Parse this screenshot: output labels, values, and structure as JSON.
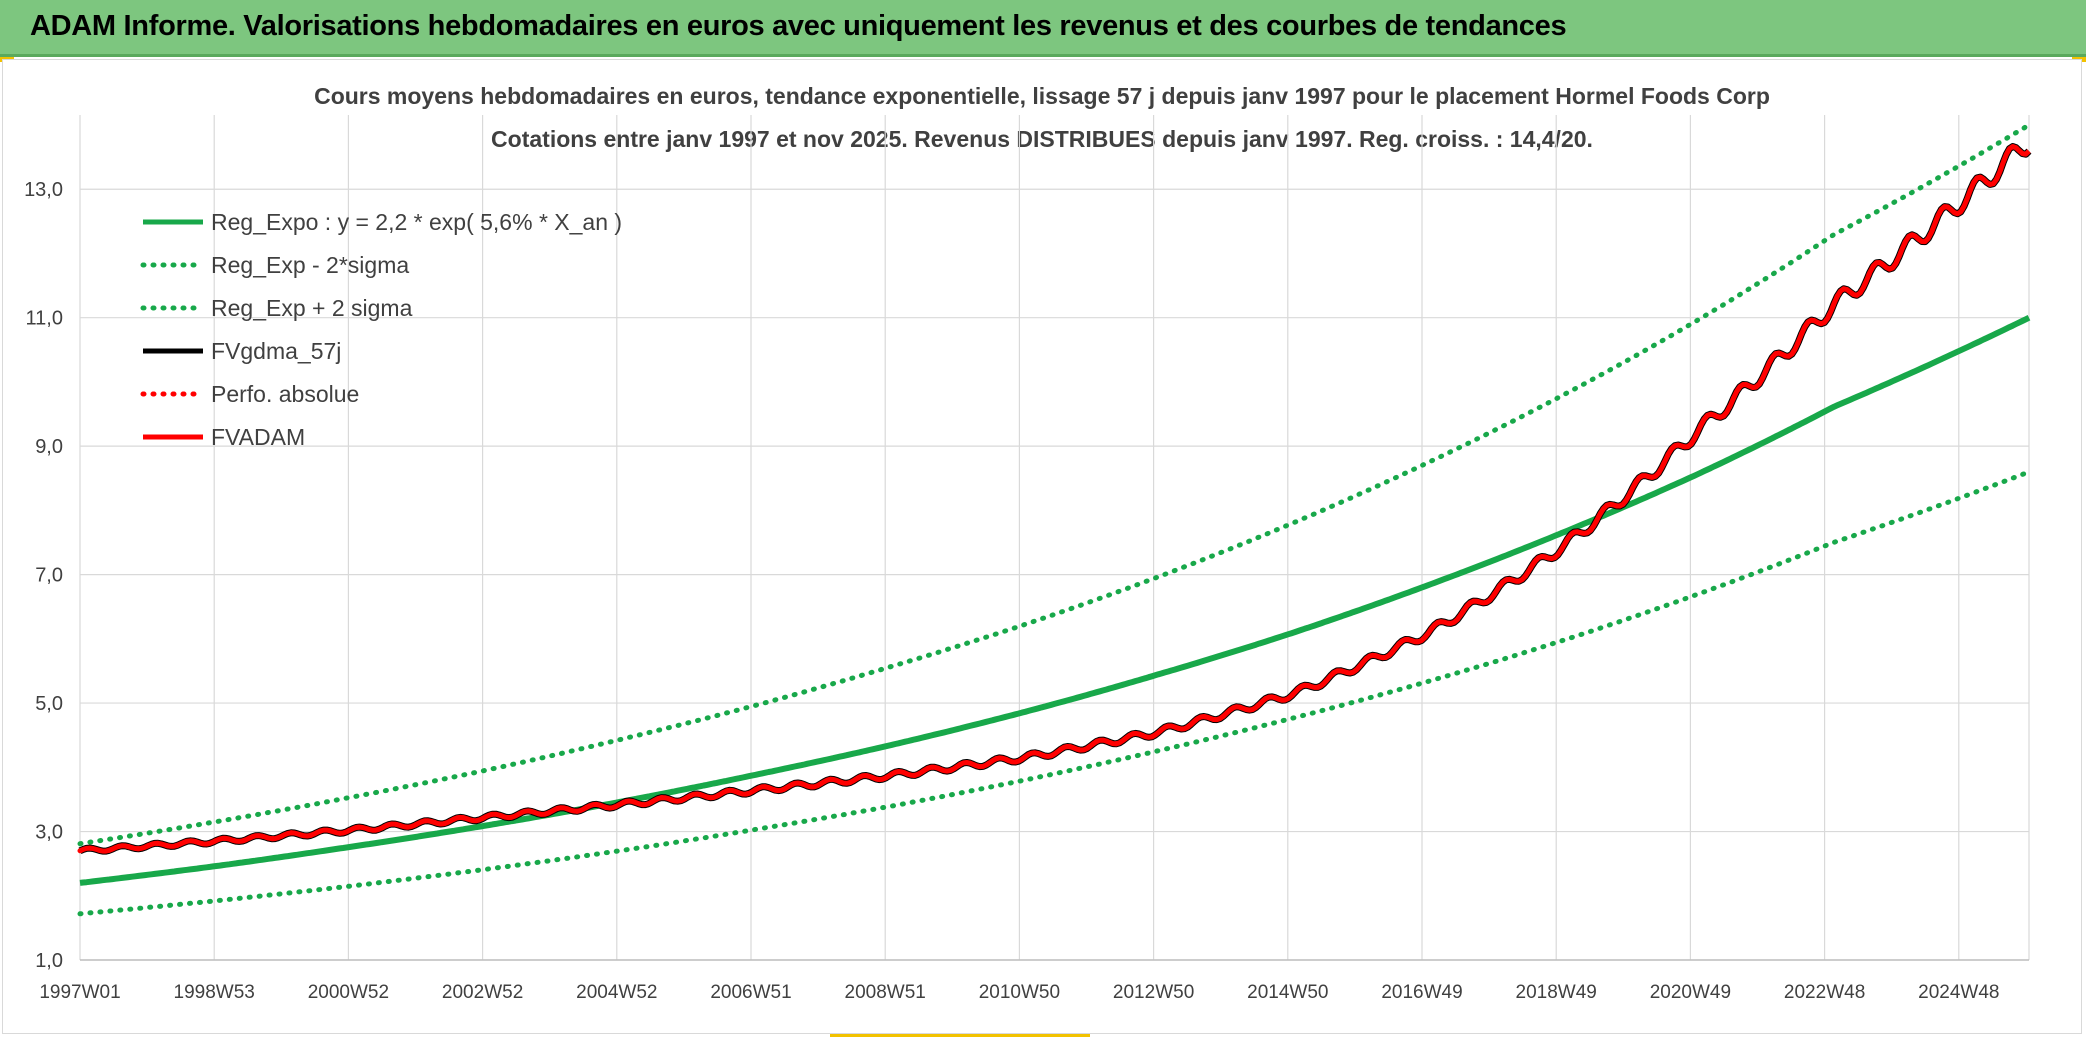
{
  "banner": {
    "title": "ADAM Informe. Valorisations hebdomadaires en euros avec uniquement les revenus et des courbes de tendances"
  },
  "colors": {
    "banner_bg": "#7dc67f",
    "green": "#18a84a",
    "red": "#ff0000",
    "black": "#000000",
    "grid": "#d9d9d9",
    "text": "#404040"
  },
  "chart_data": {
    "type": "line",
    "title": "Cours moyens hebdomadaires en euros, tendance exponentielle, lissage 57 j depuis janv 1997 pour le placement Hormel Foods Corp",
    "subtitle": "Cotations entre janv 1997 et nov 2025. Revenus DISTRIBUES depuis janv 1997. Reg. croiss. : 14,4/20.",
    "xlabel": "",
    "ylabel": "",
    "x_tick_labels": [
      "1997W01",
      "1998W53",
      "2000W52",
      "2002W52",
      "2004W52",
      "2006W51",
      "2008W51",
      "2010W50",
      "2012W50",
      "2014W50",
      "2016W49",
      "2018W49",
      "2020W49",
      "2022W48",
      "2024W48"
    ],
    "x_range": [
      1997.0,
      2025.9
    ],
    "y_ticks": [
      "1,0",
      "3,0",
      "5,0",
      "7,0",
      "9,0",
      "11,0",
      "13,0"
    ],
    "ylim": [
      1.0,
      14.0
    ],
    "grid": true,
    "legend_position": "top-left",
    "series": [
      {
        "name": "Reg_Expo : y = 2,2 * exp( 5,6% *  X_an )",
        "style": "solid",
        "color": "#18a84a",
        "x": [
          1997,
          1999,
          2001,
          2003,
          2005,
          2007,
          2009,
          2011,
          2013,
          2015,
          2017,
          2019,
          2021,
          2023,
          2025.9
        ],
        "y": [
          2.2,
          2.46,
          2.76,
          3.09,
          3.46,
          3.88,
          4.34,
          4.86,
          5.45,
          6.1,
          6.84,
          7.66,
          8.57,
          9.61,
          11.0
        ]
      },
      {
        "name": "Reg_Exp - 2*sigma",
        "style": "dotted",
        "color": "#18a84a",
        "x": [
          1997,
          1999,
          2001,
          2003,
          2005,
          2007,
          2009,
          2011,
          2013,
          2015,
          2017,
          2019,
          2021,
          2023,
          2025.9
        ],
        "y": [
          1.72,
          1.92,
          2.15,
          2.41,
          2.7,
          3.03,
          3.39,
          3.8,
          4.26,
          4.77,
          5.34,
          5.98,
          6.7,
          7.5,
          8.6
        ]
      },
      {
        "name": "Reg_Exp + 2 sigma",
        "style": "dotted",
        "color": "#18a84a",
        "x": [
          1997,
          1999,
          2001,
          2003,
          2005,
          2007,
          2009,
          2011,
          2013,
          2015,
          2017,
          2019,
          2021,
          2023,
          2025.9
        ],
        "y": [
          2.81,
          3.15,
          3.53,
          3.95,
          4.43,
          4.96,
          5.56,
          6.22,
          6.97,
          7.81,
          8.75,
          9.8,
          10.97,
          12.29,
          14.0
        ]
      },
      {
        "name": "FVgdma_57j",
        "style": "solid",
        "color": "#000000",
        "x": [
          1997,
          1999,
          2001,
          2003,
          2005,
          2007,
          2009,
          2011,
          2013,
          2015,
          2017,
          2019,
          2021,
          2023,
          2025.9
        ],
        "y": [
          2.7,
          2.85,
          3.02,
          3.22,
          3.42,
          3.64,
          3.87,
          4.15,
          4.55,
          5.15,
          6.1,
          7.45,
          9.25,
          11.2,
          13.75
        ]
      },
      {
        "name": "Perfo. absolue",
        "style": "dotted",
        "color": "#ff0000",
        "x": [
          1997,
          1999,
          2001,
          2003,
          2005,
          2007,
          2009,
          2011,
          2013,
          2015,
          2017,
          2019,
          2021,
          2023,
          2025.9
        ],
        "y": [
          2.7,
          2.85,
          3.02,
          3.22,
          3.42,
          3.64,
          3.87,
          4.15,
          4.55,
          5.15,
          6.1,
          7.45,
          9.25,
          11.2,
          13.75
        ]
      },
      {
        "name": "FVADAM",
        "style": "solid",
        "color": "#ff0000",
        "x": [
          1997,
          1999,
          2001,
          2003,
          2005,
          2007,
          2009,
          2011,
          2013,
          2015,
          2017,
          2019,
          2021,
          2023,
          2025.9
        ],
        "y": [
          2.7,
          2.85,
          3.02,
          3.22,
          3.42,
          3.64,
          3.87,
          4.15,
          4.55,
          5.15,
          6.1,
          7.45,
          9.25,
          11.2,
          13.75
        ]
      }
    ]
  }
}
